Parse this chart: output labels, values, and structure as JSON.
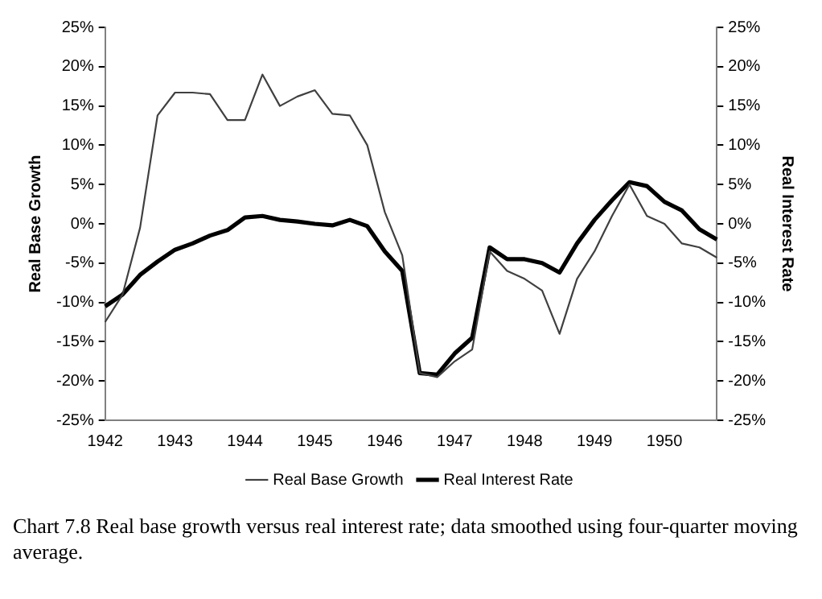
{
  "chart_data": {
    "type": "line",
    "ylabel": "Real Base Growth",
    "y2label": "Real Interest Rate",
    "categories": [
      "1942",
      null,
      null,
      null,
      "1943",
      null,
      null,
      null,
      "1944",
      null,
      null,
      null,
      "1945",
      null,
      null,
      null,
      "1946",
      null,
      null,
      null,
      "1947",
      null,
      null,
      null,
      "1948",
      null,
      null,
      null,
      "1949",
      null,
      null,
      null,
      "1950",
      null,
      null,
      null
    ],
    "series": [
      {
        "name": "Real Base Growth",
        "color": "#404040",
        "values": [
          -12.5,
          -9,
          -0.5,
          13.8,
          16.7,
          16.7,
          16.5,
          13.2,
          13.2,
          19,
          15,
          16.2,
          17,
          14,
          13.8,
          10,
          1.5,
          -4,
          -19,
          -19.5,
          -17.5,
          -16,
          -3.5,
          -6,
          -7,
          -8.5,
          -14,
          -7,
          -3.5,
          1,
          5,
          1,
          0,
          -2.5,
          -3,
          -4.3
        ]
      },
      {
        "name": "Real Interest Rate",
        "color": "#000000",
        "axis": "y2",
        "values": [
          -10.5,
          -9,
          -6.5,
          -4.8,
          -3.3,
          -2.5,
          -1.5,
          -0.8,
          0.8,
          1,
          0.5,
          0.3,
          0,
          -0.2,
          0.5,
          -0.3,
          -3.5,
          -6,
          -19,
          -19.2,
          -16.5,
          -14.5,
          -3,
          -4.5,
          -4.5,
          -5,
          -6.2,
          -2.5,
          0.5,
          3,
          5.3,
          4.8,
          2.8,
          1.7,
          -0.7,
          -2
        ]
      }
    ],
    "ylim": [
      -25,
      25
    ],
    "yticks": [
      {
        "value": -25,
        "label": "-25%"
      },
      {
        "value": -20,
        "label": "-20%"
      },
      {
        "value": -15,
        "label": "-15%"
      },
      {
        "value": -10,
        "label": "-10%"
      },
      {
        "value": -5,
        "label": "-5%"
      },
      {
        "value": 0,
        "label": "0%"
      },
      {
        "value": 5,
        "label": "5%"
      },
      {
        "value": 10,
        "label": "10%"
      },
      {
        "value": 15,
        "label": "15%"
      },
      {
        "value": 20,
        "label": "20%"
      },
      {
        "value": 25,
        "label": "25%"
      }
    ],
    "y2lim": [
      -25,
      25
    ],
    "y2ticks": [
      {
        "value": -25,
        "label": "-25%"
      },
      {
        "value": -20,
        "label": "-20%"
      },
      {
        "value": -15,
        "label": "-15%"
      },
      {
        "value": -10,
        "label": "-10%"
      },
      {
        "value": -5,
        "label": "-5%"
      },
      {
        "value": 0,
        "label": "0%"
      },
      {
        "value": 5,
        "label": "5%"
      },
      {
        "value": 10,
        "label": "10%"
      },
      {
        "value": 15,
        "label": "15%"
      },
      {
        "value": 20,
        "label": "20%"
      },
      {
        "value": 25,
        "label": "25%"
      }
    ],
    "grid": false,
    "legend": "bottom",
    "marker": "none",
    "line_style": "solid",
    "annotations": [
      "Chart 7.8  Real base growth versus real interest rate; data smoothed using four-quarter moving average."
    ]
  }
}
